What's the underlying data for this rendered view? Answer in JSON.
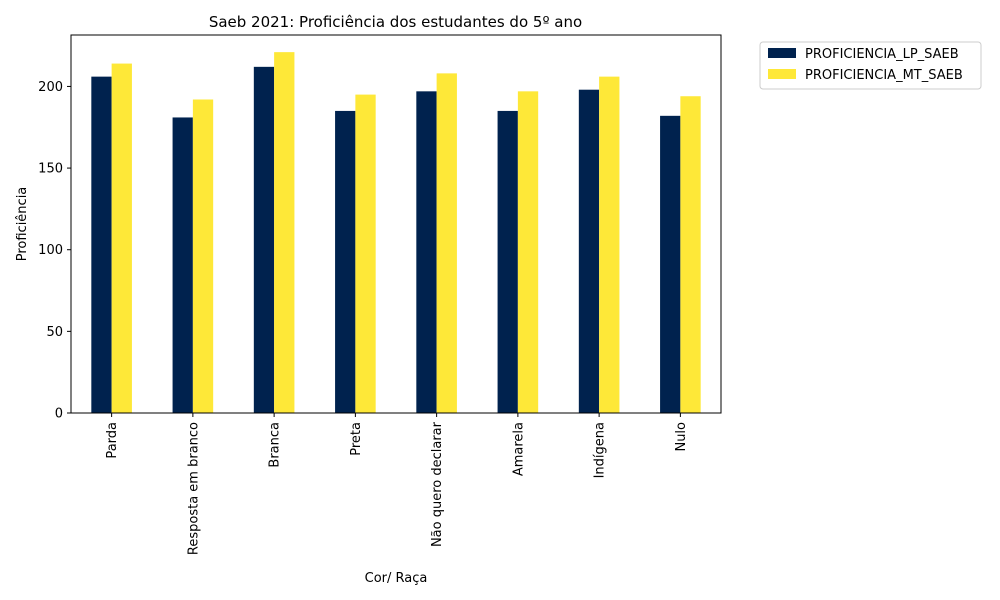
{
  "chart_data": {
    "type": "bar",
    "title": "Saeb 2021: Proficiência dos estudantes do 5º ano",
    "xlabel": "Cor/ Raça",
    "ylabel": "Proficiência",
    "categories": [
      "Parda",
      "Resposta em branco",
      "Branca",
      "Preta",
      "Não quero declarar",
      "Amarela",
      "Indígena",
      "Nulo"
    ],
    "series": [
      {
        "name": "PROFICIENCIA_LP_SAEB",
        "color": "#00224e",
        "values": [
          206,
          181,
          212,
          185,
          197,
          185,
          198,
          182
        ]
      },
      {
        "name": "PROFICIENCIA_MT_SAEB",
        "color": "#fee838",
        "values": [
          214,
          192,
          221,
          195,
          208,
          197,
          206,
          194
        ]
      }
    ],
    "ylim": [
      0,
      231.5
    ],
    "yticks": [
      0,
      50,
      100,
      150,
      200
    ],
    "grid": false,
    "legend_position": "outside-top-right"
  }
}
